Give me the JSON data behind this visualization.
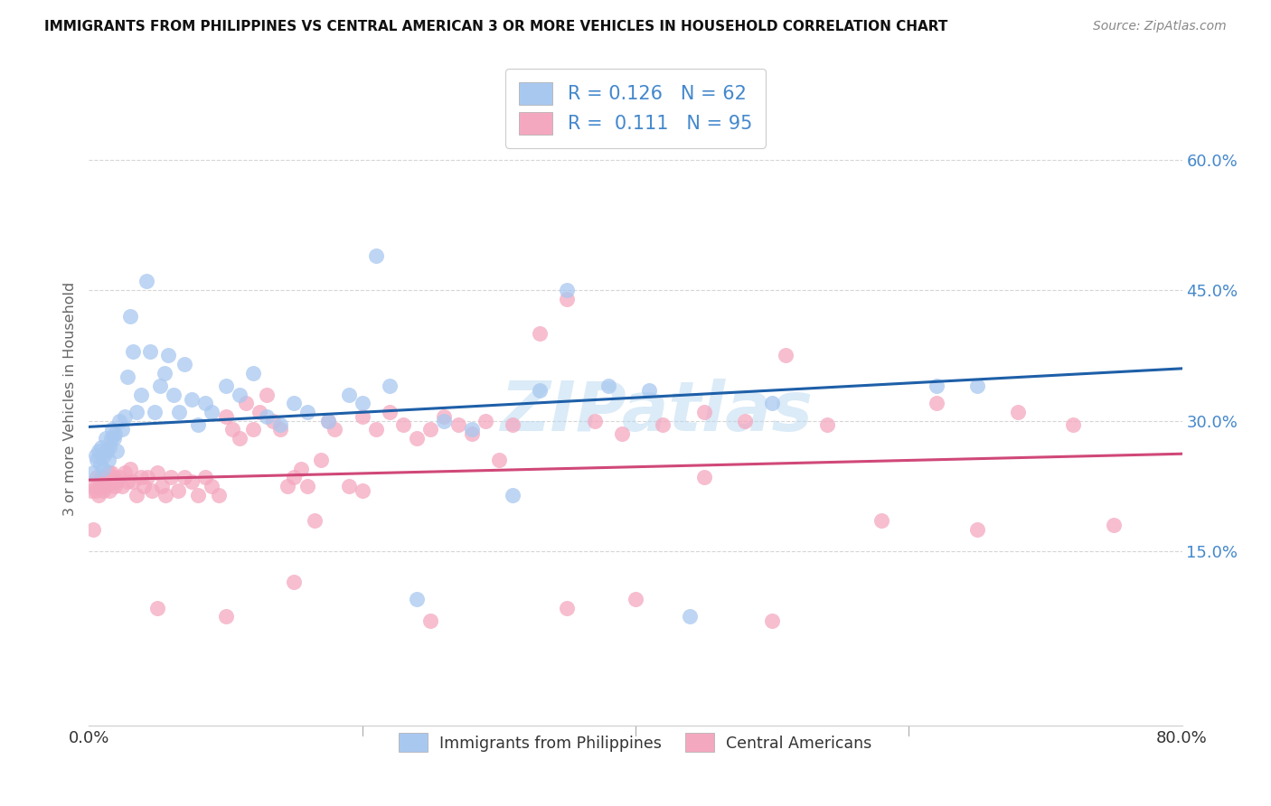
{
  "title": "IMMIGRANTS FROM PHILIPPINES VS CENTRAL AMERICAN 3 OR MORE VEHICLES IN HOUSEHOLD CORRELATION CHART",
  "source": "Source: ZipAtlas.com",
  "ylabel": "3 or more Vehicles in Household",
  "legend_label1": "Immigrants from Philippines",
  "legend_label2": "Central Americans",
  "r1": 0.126,
  "n1": 62,
  "r2": 0.111,
  "n2": 95,
  "color_blue": "#A8C8F0",
  "color_pink": "#F4A8C0",
  "line_color_blue": "#1E5FA8",
  "line_color_pink": "#D04878",
  "right_label_color": "#4488CC",
  "ytick_values": [
    0.15,
    0.3,
    0.45,
    0.6
  ],
  "xlim": [
    0.0,
    0.8
  ],
  "ylim": [
    -0.05,
    0.7
  ],
  "blue_line_y0": 0.293,
  "blue_line_y1": 0.36,
  "pink_line_y0": 0.232,
  "pink_line_y1": 0.262,
  "blue_x": [
    0.003,
    0.005,
    0.006,
    0.007,
    0.008,
    0.009,
    0.01,
    0.011,
    0.012,
    0.013,
    0.014,
    0.015,
    0.016,
    0.017,
    0.018,
    0.019,
    0.02,
    0.022,
    0.024,
    0.026,
    0.028,
    0.03,
    0.032,
    0.035,
    0.038,
    0.042,
    0.045,
    0.048,
    0.052,
    0.055,
    0.058,
    0.062,
    0.066,
    0.07,
    0.075,
    0.08,
    0.085,
    0.09,
    0.1,
    0.11,
    0.12,
    0.13,
    0.14,
    0.15,
    0.16,
    0.175,
    0.19,
    0.2,
    0.21,
    0.22,
    0.24,
    0.26,
    0.28,
    0.31,
    0.33,
    0.35,
    0.38,
    0.41,
    0.44,
    0.5,
    0.62,
    0.65
  ],
  "blue_y": [
    0.24,
    0.26,
    0.255,
    0.265,
    0.25,
    0.27,
    0.245,
    0.26,
    0.28,
    0.265,
    0.255,
    0.27,
    0.28,
    0.29,
    0.28,
    0.285,
    0.265,
    0.3,
    0.29,
    0.305,
    0.35,
    0.42,
    0.38,
    0.31,
    0.33,
    0.46,
    0.38,
    0.31,
    0.34,
    0.355,
    0.375,
    0.33,
    0.31,
    0.365,
    0.325,
    0.295,
    0.32,
    0.31,
    0.34,
    0.33,
    0.355,
    0.305,
    0.295,
    0.32,
    0.31,
    0.3,
    0.33,
    0.32,
    0.49,
    0.34,
    0.095,
    0.3,
    0.29,
    0.215,
    0.335,
    0.45,
    0.34,
    0.335,
    0.075,
    0.32,
    0.34,
    0.34
  ],
  "pink_x": [
    0.002,
    0.003,
    0.004,
    0.005,
    0.006,
    0.007,
    0.008,
    0.009,
    0.01,
    0.011,
    0.012,
    0.013,
    0.014,
    0.015,
    0.016,
    0.017,
    0.018,
    0.019,
    0.02,
    0.022,
    0.024,
    0.026,
    0.028,
    0.03,
    0.032,
    0.035,
    0.038,
    0.04,
    0.043,
    0.046,
    0.05,
    0.053,
    0.056,
    0.06,
    0.065,
    0.07,
    0.075,
    0.08,
    0.085,
    0.09,
    0.095,
    0.1,
    0.105,
    0.11,
    0.115,
    0.12,
    0.125,
    0.13,
    0.135,
    0.14,
    0.145,
    0.15,
    0.155,
    0.16,
    0.165,
    0.17,
    0.175,
    0.18,
    0.19,
    0.2,
    0.21,
    0.22,
    0.23,
    0.24,
    0.25,
    0.26,
    0.27,
    0.28,
    0.29,
    0.31,
    0.33,
    0.35,
    0.37,
    0.39,
    0.42,
    0.45,
    0.48,
    0.51,
    0.54,
    0.58,
    0.62,
    0.65,
    0.68,
    0.72,
    0.75,
    0.05,
    0.1,
    0.15,
    0.2,
    0.25,
    0.3,
    0.35,
    0.4,
    0.45,
    0.5
  ],
  "pink_y": [
    0.22,
    0.175,
    0.225,
    0.22,
    0.235,
    0.215,
    0.225,
    0.235,
    0.22,
    0.235,
    0.225,
    0.23,
    0.24,
    0.22,
    0.24,
    0.23,
    0.235,
    0.225,
    0.23,
    0.235,
    0.225,
    0.24,
    0.23,
    0.245,
    0.23,
    0.215,
    0.235,
    0.225,
    0.235,
    0.22,
    0.24,
    0.225,
    0.215,
    0.235,
    0.22,
    0.235,
    0.23,
    0.215,
    0.235,
    0.225,
    0.215,
    0.305,
    0.29,
    0.28,
    0.32,
    0.29,
    0.31,
    0.33,
    0.3,
    0.29,
    0.225,
    0.235,
    0.245,
    0.225,
    0.185,
    0.255,
    0.3,
    0.29,
    0.225,
    0.305,
    0.29,
    0.31,
    0.295,
    0.28,
    0.29,
    0.305,
    0.295,
    0.285,
    0.3,
    0.295,
    0.4,
    0.44,
    0.3,
    0.285,
    0.295,
    0.31,
    0.3,
    0.375,
    0.295,
    0.185,
    0.32,
    0.175,
    0.31,
    0.295,
    0.18,
    0.085,
    0.075,
    0.115,
    0.22,
    0.07,
    0.255,
    0.085,
    0.095,
    0.235,
    0.07
  ]
}
